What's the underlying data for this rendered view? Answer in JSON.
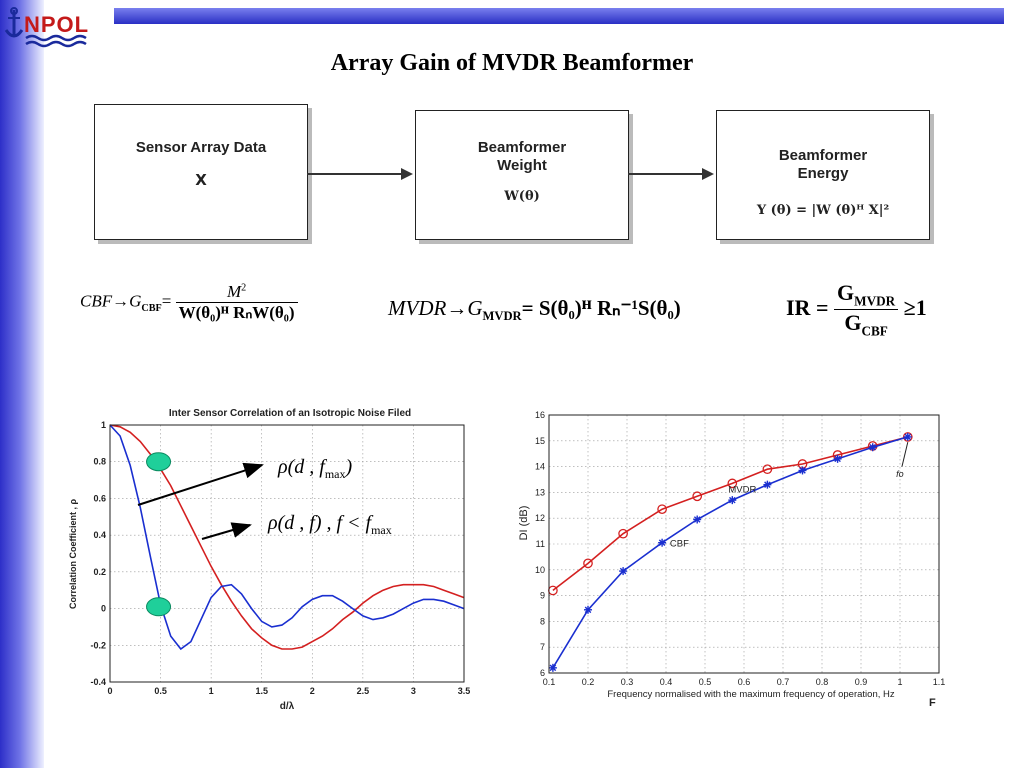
{
  "slide": {
    "title": "Array Gain of MVDR Beamformer",
    "logo_text": "NPOL",
    "colors": {
      "accent": "#2a2fc4",
      "red": "#d42020",
      "blue": "#1a2fd0",
      "marker": "#1fcf9a"
    }
  },
  "diagram": {
    "boxes": [
      {
        "title": "Sensor Array Data",
        "sub": "X"
      },
      {
        "title": "Beamformer Weight",
        "sub": "W(θ)"
      },
      {
        "title": "Beamformer Energy",
        "sub": "Y (θ) = |W (θ)ᴴ X|²"
      }
    ]
  },
  "formulas": {
    "cbf_lhs": "CBF→G",
    "cbf_sub": "CBF",
    "cbf_num": "M",
    "cbf_num_sup": "2",
    "cbf_den": "W(θ₀)ᴴ RₙW(θ₀)",
    "mvdr_lhs": "MVDR→G",
    "mvdr_sub": "MVDR",
    "mvdr_rhs": "= S(θ₀)ᴴ Rₙ⁻¹S(θ₀)",
    "ir_lhs": "IR =",
    "ir_num": "G",
    "ir_num_sub": "MVDR",
    "ir_den": "G",
    "ir_den_sub": "CBF",
    "ir_rhs": "≥1"
  },
  "annotations": {
    "rho_fmax": "ρ(d , f",
    "rho_fmax_sub": "max",
    "rho_f": "ρ(d , f) ,  f < f",
    "rho_f_sub": "max"
  },
  "chart_data": [
    {
      "type": "line",
      "title": "Inter Sensor Correlation of an Isotropic Noise Filed",
      "xlabel": "d/λ",
      "ylabel": "Correlation Coefficient , ρ",
      "xlim": [
        0,
        3.5
      ],
      "ylim": [
        -0.4,
        1
      ],
      "xticks": [
        "0",
        "0.5",
        "1",
        "1.5",
        "2",
        "2.5",
        "3",
        "3.5"
      ],
      "yticks": [
        "-0.4",
        "-0.2",
        "0",
        "0.2",
        "0.4",
        "0.6",
        "0.8",
        "1"
      ],
      "grid": true,
      "series": [
        {
          "color": "#d42020",
          "x": [
            0,
            0.1,
            0.2,
            0.3,
            0.4,
            0.5,
            0.6,
            0.7,
            0.8,
            0.9,
            1.0,
            1.1,
            1.2,
            1.3,
            1.4,
            1.5,
            1.6,
            1.7,
            1.8,
            1.9,
            2.0,
            2.1,
            2.2,
            2.3,
            2.4,
            2.5,
            2.6,
            2.7,
            2.8,
            2.9,
            3.0,
            3.1,
            3.2,
            3.3,
            3.4,
            3.5
          ],
          "y": [
            1.0,
            0.99,
            0.96,
            0.91,
            0.84,
            0.76,
            0.67,
            0.56,
            0.45,
            0.34,
            0.23,
            0.13,
            0.04,
            -0.04,
            -0.11,
            -0.16,
            -0.2,
            -0.22,
            -0.22,
            -0.21,
            -0.18,
            -0.15,
            -0.11,
            -0.06,
            -0.02,
            0.03,
            0.07,
            0.1,
            0.12,
            0.13,
            0.13,
            0.13,
            0.12,
            0.1,
            0.08,
            0.06
          ]
        },
        {
          "color": "#1a2fd0",
          "x": [
            0,
            0.1,
            0.2,
            0.3,
            0.4,
            0.5,
            0.6,
            0.7,
            0.8,
            0.9,
            1.0,
            1.1,
            1.2,
            1.3,
            1.4,
            1.5,
            1.6,
            1.7,
            1.8,
            1.9,
            2.0,
            2.1,
            2.2,
            2.3,
            2.4,
            2.5,
            2.6,
            2.7,
            2.8,
            2.9,
            3.0,
            3.1,
            3.2,
            3.3,
            3.4,
            3.5
          ],
          "y": [
            1.0,
            0.94,
            0.78,
            0.55,
            0.28,
            0.02,
            -0.15,
            -0.22,
            -0.18,
            -0.06,
            0.06,
            0.12,
            0.13,
            0.08,
            0.0,
            -0.07,
            -0.1,
            -0.09,
            -0.05,
            0.01,
            0.05,
            0.07,
            0.07,
            0.04,
            0.0,
            -0.04,
            -0.06,
            -0.05,
            -0.03,
            0.0,
            0.03,
            0.05,
            0.05,
            0.04,
            0.02,
            0.0
          ]
        }
      ],
      "markers": [
        {
          "x": 0.48,
          "y": 0.8
        },
        {
          "x": 0.48,
          "y": 0.01
        }
      ]
    },
    {
      "type": "line",
      "title": "",
      "xlabel": "Frequency normalised with the maximum frequency of operation, Hz",
      "ylabel": "DI (dB)",
      "xlim": [
        0.1,
        1.1
      ],
      "ylim": [
        6,
        16
      ],
      "xticks": [
        "0.1",
        "0.2",
        "0.3",
        "0.4",
        "0.5",
        "0.6",
        "0.7",
        "0.8",
        "0.9",
        "1",
        "1.1"
      ],
      "yticks": [
        "6",
        "7",
        "8",
        "9",
        "10",
        "11",
        "12",
        "13",
        "14",
        "15",
        "16"
      ],
      "corner_label": "F",
      "annotation": "fo",
      "grid": true,
      "series": [
        {
          "name": "MVDR",
          "color": "#d42020",
          "marker": "circle",
          "x": [
            0.11,
            0.2,
            0.29,
            0.39,
            0.48,
            0.57,
            0.66,
            0.75,
            0.84,
            0.93,
            1.02
          ],
          "y": [
            9.2,
            10.25,
            11.4,
            12.35,
            12.85,
            13.35,
            13.9,
            14.1,
            14.45,
            14.8,
            15.15
          ]
        },
        {
          "name": "CBF",
          "color": "#1a2fd0",
          "marker": "star",
          "x": [
            0.11,
            0.2,
            0.29,
            0.39,
            0.48,
            0.57,
            0.66,
            0.75,
            0.84,
            0.93,
            1.02
          ],
          "y": [
            6.2,
            8.45,
            9.95,
            11.05,
            11.95,
            12.7,
            13.3,
            13.85,
            14.3,
            14.75,
            15.15
          ]
        }
      ]
    }
  ]
}
